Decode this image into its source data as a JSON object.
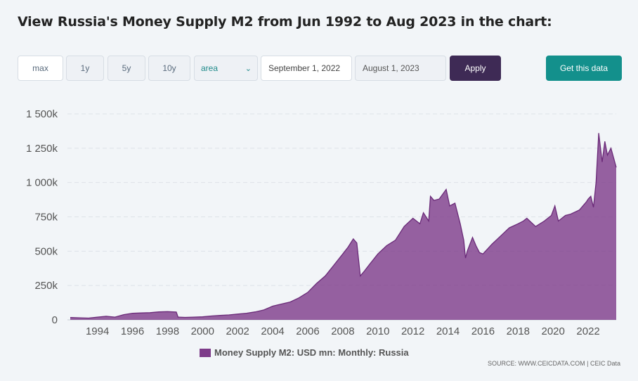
{
  "title": "View Russia's Money Supply M2 from Jun 1992 to Aug 2023 in the chart:",
  "controls": {
    "ranges": [
      "max",
      "1y",
      "5y",
      "10y"
    ],
    "chart_type_selected": "area",
    "start_date": "September 1, 2022",
    "end_date": "August 1, 2023",
    "apply_label": "Apply",
    "get_data_label": "Get this data"
  },
  "colors": {
    "series": "#7d3b89",
    "apply": "#3e2a55",
    "get_data": "#13908c"
  },
  "source_text": "SOURCE: WWW.CEICDATA.COM | CEIC Data",
  "chart_data": {
    "type": "area",
    "title": "",
    "xlabel": "",
    "ylabel": "",
    "ylim": [
      0,
      1500000
    ],
    "xlim": [
      1992.45,
      2023.6
    ],
    "y_ticks": [
      0,
      250000,
      500000,
      750000,
      1000000,
      1250000,
      1500000
    ],
    "y_tick_labels": [
      "0",
      "250k",
      "500k",
      "750k",
      "1 000k",
      "1 250k",
      "1 500k"
    ],
    "x_ticks": [
      1994,
      1996,
      1998,
      2000,
      2002,
      2004,
      2006,
      2008,
      2010,
      2012,
      2014,
      2016,
      2018,
      2020,
      2022
    ],
    "x_tick_labels": [
      "1994",
      "1996",
      "1998",
      "2000",
      "2002",
      "2004",
      "2006",
      "2008",
      "2010",
      "2012",
      "2014",
      "2016",
      "2018",
      "2020",
      "2022"
    ],
    "grid": "horizontal dashed",
    "legend_position": "bottom",
    "series": [
      {
        "name": "Money Supply M2: USD mn: Monthly: Russia",
        "x": [
          1992.45,
          1993.0,
          1993.5,
          1994.0,
          1994.5,
          1995.0,
          1995.5,
          1996.0,
          1996.5,
          1997.0,
          1997.5,
          1998.0,
          1998.5,
          1998.6,
          1999.0,
          1999.5,
          2000.0,
          2000.5,
          2001.0,
          2001.5,
          2002.0,
          2002.5,
          2003.0,
          2003.5,
          2004.0,
          2004.5,
          2005.0,
          2005.5,
          2006.0,
          2006.5,
          2007.0,
          2007.5,
          2008.0,
          2008.3,
          2008.6,
          2008.8,
          2009.0,
          2009.2,
          2009.5,
          2010.0,
          2010.5,
          2011.0,
          2011.5,
          2012.0,
          2012.4,
          2012.6,
          2012.9,
          2013.0,
          2013.2,
          2013.5,
          2013.9,
          2014.1,
          2014.4,
          2014.7,
          2014.9,
          2015.0,
          2015.1,
          2015.4,
          2015.6,
          2015.8,
          2016.0,
          2016.5,
          2017.0,
          2017.5,
          2018.0,
          2018.3,
          2018.5,
          2019.0,
          2019.5,
          2019.9,
          2020.1,
          2020.3,
          2020.7,
          2021.0,
          2021.5,
          2021.9,
          2022.0,
          2022.15,
          2022.3,
          2022.45,
          2022.6,
          2022.8,
          2022.95,
          2023.1,
          2023.3,
          2023.45,
          2023.6
        ],
        "values": [
          17000,
          15000,
          13000,
          20000,
          26000,
          20000,
          38000,
          48000,
          50000,
          52000,
          58000,
          60000,
          57000,
          20000,
          18000,
          20000,
          22000,
          28000,
          32000,
          36000,
          42000,
          48000,
          58000,
          72000,
          100000,
          115000,
          130000,
          160000,
          200000,
          265000,
          320000,
          400000,
          480000,
          530000,
          590000,
          560000,
          320000,
          350000,
          400000,
          480000,
          540000,
          580000,
          680000,
          740000,
          700000,
          780000,
          720000,
          900000,
          870000,
          880000,
          950000,
          830000,
          850000,
          700000,
          580000,
          450000,
          500000,
          600000,
          540000,
          490000,
          480000,
          550000,
          610000,
          670000,
          700000,
          720000,
          740000,
          680000,
          720000,
          760000,
          830000,
          720000,
          760000,
          770000,
          800000,
          860000,
          880000,
          900000,
          820000,
          1000000,
          1360000,
          1150000,
          1300000,
          1200000,
          1250000,
          1180000,
          1110000
        ]
      }
    ]
  }
}
